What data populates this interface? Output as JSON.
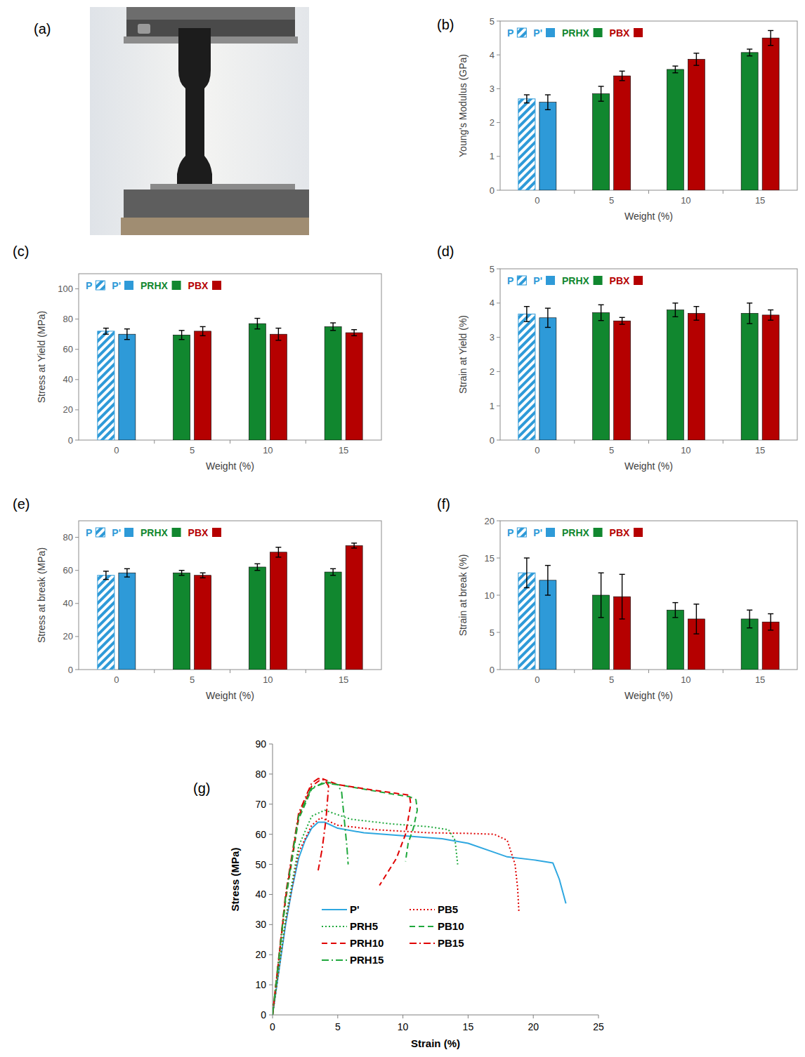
{
  "photo": {
    "panel": "(a)"
  },
  "chart_data": [
    {
      "type": "bar",
      "panel": "(b)",
      "x_label": "Weight (%)",
      "y_label": "Young's Modulus (GPa)",
      "categories": [
        "0",
        "5",
        "10",
        "15"
      ],
      "ylim": [
        0,
        5
      ],
      "yticks": [
        0,
        1,
        2,
        3,
        4,
        5
      ],
      "grid": false,
      "legend": "upper left",
      "series": [
        {
          "name": "P",
          "color": "#2e9ad8",
          "marker": "hatch",
          "values": [
            2.7,
            null,
            null,
            null
          ],
          "errors": [
            0.12,
            null,
            null,
            null
          ]
        },
        {
          "name": "P'",
          "color": "#2e9ad8",
          "values": [
            2.6,
            null,
            null,
            null
          ],
          "errors": [
            0.22,
            null,
            null,
            null
          ]
        },
        {
          "name": "PRHX",
          "color": "#11872f",
          "values": [
            null,
            2.85,
            3.57,
            4.07
          ],
          "errors": [
            null,
            0.22,
            0.1,
            0.1
          ]
        },
        {
          "name": "PBX",
          "color": "#b50000",
          "values": [
            null,
            3.38,
            3.87,
            4.5
          ],
          "errors": [
            null,
            0.14,
            0.18,
            0.22
          ]
        }
      ]
    },
    {
      "type": "bar",
      "panel": "(c)",
      "x_label": "Weight (%)",
      "y_label": "Stress at Yield (MPa)",
      "categories": [
        "0",
        "5",
        "10",
        "15"
      ],
      "ylim": [
        0,
        110
      ],
      "yticks": [
        0,
        20,
        40,
        60,
        80,
        100
      ],
      "grid": false,
      "legend": "upper left",
      "series": [
        {
          "name": "P",
          "color": "#2e9ad8",
          "marker": "hatch",
          "values": [
            72,
            null,
            null,
            null
          ],
          "errors": [
            2,
            null,
            null,
            null
          ]
        },
        {
          "name": "P'",
          "color": "#2e9ad8",
          "values": [
            70,
            null,
            null,
            null
          ],
          "errors": [
            3.5,
            null,
            null,
            null
          ]
        },
        {
          "name": "PRHX",
          "color": "#11872f",
          "values": [
            null,
            69.5,
            77,
            75
          ],
          "errors": [
            null,
            3,
            3.5,
            2.5
          ]
        },
        {
          "name": "PBX",
          "color": "#b50000",
          "values": [
            null,
            72,
            70,
            71
          ],
          "errors": [
            null,
            3,
            4,
            2
          ]
        }
      ]
    },
    {
      "type": "bar",
      "panel": "(d)",
      "x_label": "Weight (%)",
      "y_label": "Strain at Yield (%)",
      "categories": [
        "0",
        "5",
        "10",
        "15"
      ],
      "ylim": [
        0,
        5
      ],
      "yticks": [
        0,
        1,
        2,
        3,
        4,
        5
      ],
      "grid": false,
      "legend": "upper left",
      "series": [
        {
          "name": "P",
          "color": "#2e9ad8",
          "marker": "hatch",
          "values": [
            3.68,
            null,
            null,
            null
          ],
          "errors": [
            0.22,
            null,
            null,
            null
          ]
        },
        {
          "name": "P'",
          "color": "#2e9ad8",
          "values": [
            3.57,
            null,
            null,
            null
          ],
          "errors": [
            0.28,
            null,
            null,
            null
          ]
        },
        {
          "name": "PRHX",
          "color": "#11872f",
          "values": [
            null,
            3.72,
            3.8,
            3.7
          ],
          "errors": [
            null,
            0.23,
            0.2,
            0.3
          ]
        },
        {
          "name": "PBX",
          "color": "#b50000",
          "values": [
            null,
            3.48,
            3.7,
            3.65
          ],
          "errors": [
            null,
            0.1,
            0.2,
            0.15
          ]
        }
      ]
    },
    {
      "type": "bar",
      "panel": "(e)",
      "x_label": "Weight (%)",
      "y_label": "Stress at break (MPa)",
      "categories": [
        "0",
        "5",
        "10",
        "15"
      ],
      "ylim": [
        0,
        90
      ],
      "yticks": [
        0,
        20,
        40,
        60,
        80
      ],
      "grid": false,
      "legend": "upper left",
      "series": [
        {
          "name": "P",
          "color": "#2e9ad8",
          "marker": "hatch",
          "values": [
            57,
            null,
            null,
            null
          ],
          "errors": [
            2.5,
            null,
            null,
            null
          ]
        },
        {
          "name": "P'",
          "color": "#2e9ad8",
          "values": [
            58.5,
            null,
            null,
            null
          ],
          "errors": [
            2.5,
            null,
            null,
            null
          ]
        },
        {
          "name": "PRHX",
          "color": "#11872f",
          "values": [
            null,
            58.5,
            62,
            59
          ],
          "errors": [
            null,
            1.5,
            2,
            2
          ]
        },
        {
          "name": "PBX",
          "color": "#b50000",
          "values": [
            null,
            57,
            71,
            75
          ],
          "errors": [
            null,
            1.5,
            3,
            1.5
          ]
        }
      ]
    },
    {
      "type": "bar",
      "panel": "(f)",
      "x_label": "Weight (%)",
      "y_label": "Strain at break (%)",
      "categories": [
        "0",
        "5",
        "10",
        "15"
      ],
      "ylim": [
        0,
        20
      ],
      "yticks": [
        0,
        5,
        10,
        15,
        20
      ],
      "grid": false,
      "legend": "upper left",
      "series": [
        {
          "name": "P",
          "color": "#2e9ad8",
          "marker": "hatch",
          "values": [
            13,
            null,
            null,
            null
          ],
          "errors": [
            2,
            null,
            null,
            null
          ]
        },
        {
          "name": "P'",
          "color": "#2e9ad8",
          "values": [
            12,
            null,
            null,
            null
          ],
          "errors": [
            2,
            null,
            null,
            null
          ]
        },
        {
          "name": "PRHX",
          "color": "#11872f",
          "values": [
            null,
            10,
            8,
            6.8
          ],
          "errors": [
            null,
            3,
            1,
            1.2
          ]
        },
        {
          "name": "PBX",
          "color": "#b50000",
          "values": [
            null,
            9.8,
            6.8,
            6.4
          ],
          "errors": [
            null,
            3,
            2,
            1.1
          ]
        }
      ]
    },
    {
      "type": "line",
      "panel": "(g)",
      "x_label": "Strain (%)",
      "y_label": "Stress (MPa)",
      "xlim": [
        0,
        25
      ],
      "xticks": [
        0,
        5,
        10,
        15,
        20,
        25
      ],
      "ylim": [
        0,
        90
      ],
      "yticks": [
        0,
        10,
        20,
        30,
        40,
        50,
        60,
        70,
        80,
        90
      ],
      "grid": false,
      "legend": "lower center",
      "series": [
        {
          "name": "P'",
          "color": "#2ea7e0",
          "line_style": "solid",
          "x": [
            0,
            0.5,
            1,
            1.5,
            2,
            2.5,
            3,
            3.5,
            4,
            5,
            7,
            10,
            13,
            15,
            17,
            18,
            20,
            21.5,
            22,
            22.5
          ],
          "values": [
            0,
            15,
            30,
            42,
            52,
            58,
            62,
            64,
            64,
            62,
            60.5,
            59.5,
            58.5,
            57,
            54,
            52.5,
            51.5,
            50.5,
            45,
            37
          ]
        },
        {
          "name": "PB5",
          "color": "#e00000",
          "line_style": "dotted",
          "x": [
            0,
            1,
            2,
            3,
            3.7,
            5,
            8,
            12,
            15,
            17,
            18,
            18.6,
            18.8,
            18.9
          ],
          "values": [
            0,
            31,
            54,
            63,
            65.5,
            63,
            61.5,
            60.5,
            60.3,
            60,
            58,
            50,
            42,
            34
          ]
        },
        {
          "name": "PRH5",
          "color": "#1fa83c",
          "line_style": "dotted",
          "x": [
            0,
            1,
            2,
            3,
            4,
            6,
            9,
            12,
            13.5,
            14,
            14.2
          ],
          "values": [
            0,
            32,
            56,
            66,
            68,
            65,
            63.5,
            62.5,
            61.5,
            58,
            50
          ]
        },
        {
          "name": "PB10",
          "color": "#1fa83c",
          "line_style": "dashed",
          "x": [
            0,
            1,
            2,
            3,
            4,
            5,
            7,
            9,
            10.5,
            11,
            11.1,
            10.8,
            10.4,
            10.2
          ],
          "values": [
            0,
            38,
            65,
            75,
            77.5,
            76.5,
            75,
            73.5,
            72.5,
            71.5,
            68,
            62,
            57,
            51
          ]
        },
        {
          "name": "PRH10",
          "color": "#e00000",
          "line_style": "dashed",
          "x": [
            0,
            1,
            2,
            3,
            3.8,
            5,
            8,
            10.5,
            10.6,
            10.2,
            9.5,
            8.2
          ],
          "values": [
            0,
            39,
            66,
            76,
            78.5,
            76.5,
            74.5,
            73,
            70,
            60,
            52,
            43
          ]
        },
        {
          "name": "PB15",
          "color": "#e00000",
          "line_style": "dashdot",
          "x": [
            0,
            1,
            2,
            3,
            3.5,
            4,
            4.3,
            4.1,
            3.8,
            3.5
          ],
          "values": [
            0,
            40,
            67,
            77,
            78.5,
            78,
            76,
            65,
            55,
            48
          ]
        },
        {
          "name": "PRH15",
          "color": "#1fa83c",
          "line_style": "dashdot",
          "x": [
            0,
            1,
            2,
            3,
            4,
            5,
            5.3,
            5.5,
            5.7,
            5.8
          ],
          "values": [
            0,
            39,
            66,
            75.5,
            77,
            76.5,
            74,
            65,
            56,
            50
          ]
        }
      ]
    }
  ]
}
